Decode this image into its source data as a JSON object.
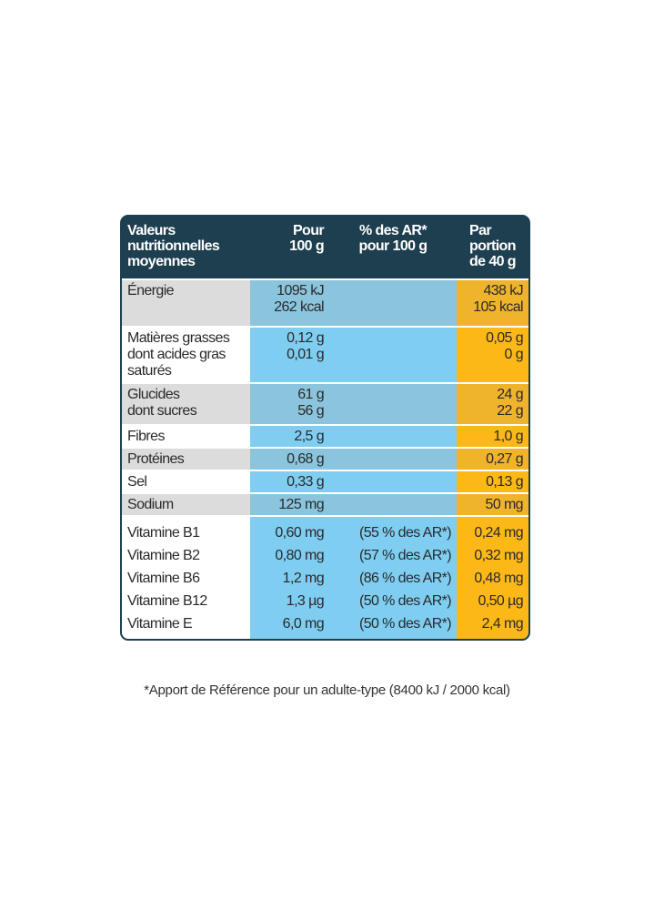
{
  "header": {
    "label": [
      "Valeurs",
      "nutritionnelles",
      "moyennes"
    ],
    "per100": [
      "Pour",
      "100 g"
    ],
    "ar": [
      "% des AR*",
      "pour 100 g"
    ],
    "portion": [
      "Par",
      "portion",
      "de 40 g"
    ]
  },
  "rows": [
    {
      "label": [
        "Énergie"
      ],
      "per100": [
        "1095 kJ",
        "262 kcal"
      ],
      "portion": [
        "438 kJ",
        "105 kcal"
      ]
    },
    {
      "label": [
        "Matières grasses",
        "dont acides gras",
        "saturés"
      ],
      "per100": [
        "0,12 g",
        "0,01 g"
      ],
      "portion": [
        "0,05 g",
        "0 g"
      ]
    },
    {
      "label": [
        "Glucides",
        "dont sucres"
      ],
      "per100": [
        "61 g",
        "56 g"
      ],
      "portion": [
        "24 g",
        "22 g"
      ]
    },
    {
      "label": [
        "Fibres"
      ],
      "per100": [
        "2,5 g"
      ],
      "portion": [
        "1,0 g"
      ]
    },
    {
      "label": [
        "Protéines"
      ],
      "per100": [
        "0,68 g"
      ],
      "portion": [
        "0,27 g"
      ]
    },
    {
      "label": [
        "Sel"
      ],
      "per100": [
        "0,33 g"
      ],
      "portion": [
        "0,13 g"
      ]
    },
    {
      "label": [
        "Sodium"
      ],
      "per100": [
        "125 mg"
      ],
      "portion": [
        "50 mg"
      ]
    },
    {
      "label": [
        "Vitamine B1",
        "Vitamine B2",
        "Vitamine B6",
        "Vitamine B12",
        "Vitamine E"
      ],
      "per100": [
        "0,60 mg",
        "0,80 mg",
        "1,2 mg",
        "1,3 µg",
        "6,0 mg"
      ],
      "ar": [
        "(55 % des AR*)",
        "(57 % des AR*)",
        "(86 % des AR*)",
        "(50 % des AR*)",
        "(50 % des AR*)"
      ],
      "portion": [
        "0,24 mg",
        "0,32 mg",
        "0,48 mg",
        "0,50 µg",
        "2,4 mg"
      ]
    }
  ],
  "footnote": "*Apport de Référence pour un adulte-type (8400 kJ / 2000 kcal)"
}
